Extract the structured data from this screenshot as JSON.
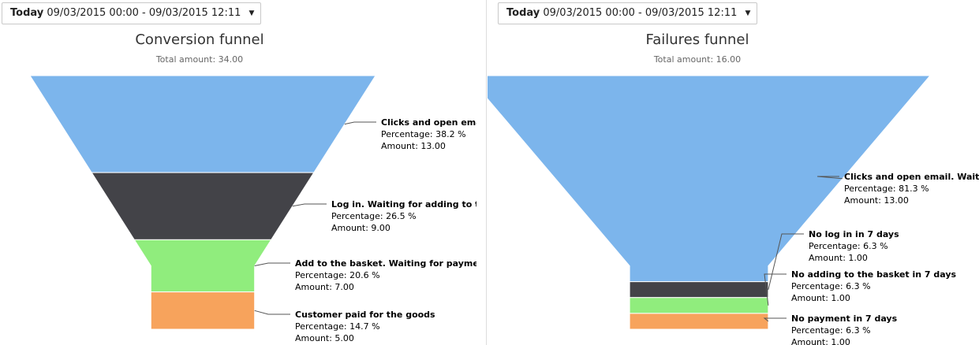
{
  "chart_data": [
    {
      "type": "funnel",
      "date_range": {
        "label": "Today",
        "value": "09/03/2015 00:00 - 09/03/2015 12:11"
      },
      "title": "Conversion funnel",
      "subtitle": "Total amount: 34.00",
      "point_labels": {
        "percentage": "Percentage:",
        "amount": "Amount:"
      },
      "stages": [
        {
          "name": "Clicks and open email. Waiting for log in",
          "percentage": "38.2 %",
          "amount": "13.00",
          "value": 13,
          "color": "#7cb5ec"
        },
        {
          "name": "Log in. Waiting for adding to the basket",
          "percentage": "26.5 %",
          "amount": "9.00",
          "value": 9,
          "color": "#434348"
        },
        {
          "name": "Add to the basket. Waiting for payment",
          "percentage": "20.6 %",
          "amount": "7.00",
          "value": 7,
          "color": "#90ed7d"
        },
        {
          "name": "Customer paid for the goods",
          "percentage": "14.7 %",
          "amount": "5.00",
          "value": 5,
          "color": "#f7a35c"
        }
      ]
    },
    {
      "type": "funnel",
      "date_range": {
        "label": "Today",
        "value": "09/03/2015 00:00 - 09/03/2015 12:11"
      },
      "title": "Failures funnel",
      "subtitle": "Total amount: 16.00",
      "point_labels": {
        "percentage": "Percentage:",
        "amount": "Amount:"
      },
      "stages": [
        {
          "name": "Clicks and open email. Waiting for log in",
          "percentage": "81.3 %",
          "amount": "13.00",
          "value": 13,
          "color": "#7cb5ec"
        },
        {
          "name": "No log in in 7 days",
          "percentage": "6.3 %",
          "amount": "1.00",
          "value": 1,
          "color": "#434348"
        },
        {
          "name": "No adding to the basket in 7 days",
          "percentage": "6.3 %",
          "amount": "1.00",
          "value": 1,
          "color": "#90ed7d"
        },
        {
          "name": "No payment in 7 days",
          "percentage": "6.3 %",
          "amount": "1.00",
          "value": 1,
          "color": "#f7a35c"
        }
      ]
    }
  ]
}
